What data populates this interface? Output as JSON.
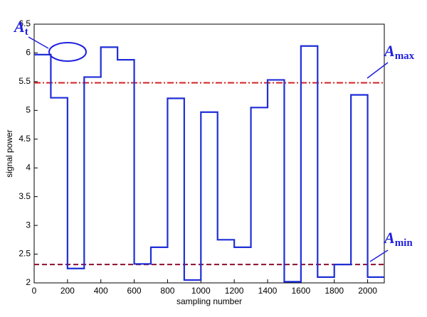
{
  "chart_data": {
    "type": "line",
    "drawstyle": "steps-post",
    "xlabel": "sampling number",
    "ylabel": "signal power",
    "x": [
      0,
      100,
      200,
      300,
      400,
      500,
      600,
      700,
      800,
      900,
      1000,
      1100,
      1200,
      1300,
      1400,
      1500,
      1600,
      1700,
      1800,
      1900,
      2000
    ],
    "series": [
      {
        "color": "#1f2fd6",
        "values": [
          5.97,
          5.22,
          2.25,
          5.58,
          6.1,
          5.88,
          2.33,
          2.62,
          5.21,
          2.05,
          4.97,
          2.75,
          2.62,
          5.05,
          5.53,
          2.02,
          6.12,
          2.1,
          2.32,
          5.27,
          2.1
        ]
      }
    ],
    "hlines": [
      {
        "value": 5.48,
        "color": "#d42020",
        "style": "dashdot"
      },
      {
        "value": 2.32,
        "color": "#8b1030",
        "style": "dashed"
      }
    ],
    "annotations": [
      {
        "base": "A",
        "sub": "t"
      },
      {
        "base": "A",
        "sub": "max"
      },
      {
        "base": "A",
        "sub": "min"
      }
    ],
    "xlim": [
      0,
      2100
    ],
    "ylim": [
      2,
      6.5
    ],
    "xticks": [
      0,
      200,
      400,
      600,
      800,
      1000,
      1200,
      1400,
      1600,
      1800,
      2000
    ],
    "yticks": [
      2,
      2.5,
      3,
      3.5,
      4,
      4.5,
      5,
      5.5,
      6,
      6.5
    ]
  }
}
